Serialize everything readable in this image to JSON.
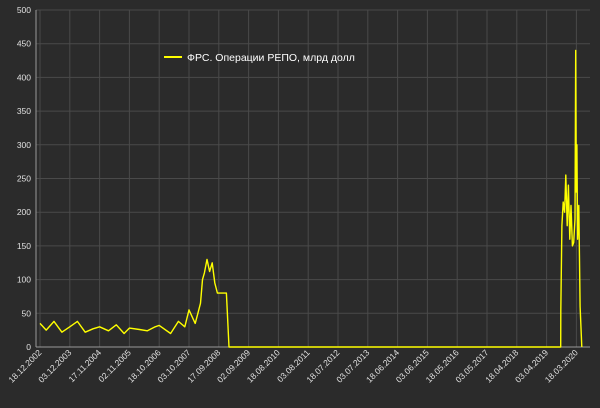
{
  "chart_data": {
    "type": "line",
    "background": "#2b2b2b",
    "grid": true,
    "grid_color": "#4a4a4a",
    "line_color": "#ffff00",
    "legend_position": "top-left",
    "ylim": [
      0,
      500
    ],
    "y_ticks": [
      "0",
      "50",
      "100",
      "150",
      "200",
      "250",
      "300",
      "350",
      "400",
      "450",
      "500"
    ],
    "x_tick_labels": [
      "18.12.2002",
      "03.12.2003",
      "17.11.2004",
      "02.11.2005",
      "18.10.2006",
      "03.10.2007",
      "17.09.2008",
      "02.09.2009",
      "18.08.2010",
      "03.08.2011",
      "18.07.2012",
      "03.07.2013",
      "18.06.2014",
      "03.06.2015",
      "18.05.2016",
      "03.05.2017",
      "18.04.2018",
      "03.04.2019",
      "18.03.2020"
    ],
    "series": [
      {
        "name": "ФРС. Операции РЕПО, млрд долл",
        "x": [
          "2002-12-18",
          "2003-03-01",
          "2003-06-01",
          "2003-09-01",
          "2003-12-03",
          "2004-03-01",
          "2004-06-01",
          "2004-09-01",
          "2004-11-17",
          "2005-03-01",
          "2005-06-01",
          "2005-09-01",
          "2005-11-02",
          "2006-03-01",
          "2006-06-01",
          "2006-09-01",
          "2006-10-18",
          "2007-03-01",
          "2007-06-01",
          "2007-08-15",
          "2007-10-03",
          "2007-12-15",
          "2008-01-15",
          "2008-02-15",
          "2008-03-10",
          "2008-04-01",
          "2008-05-01",
          "2008-06-01",
          "2008-07-01",
          "2008-08-01",
          "2008-09-01",
          "2008-09-17",
          "2008-10-15",
          "2008-11-15",
          "2008-12-15",
          "2009-01-15",
          "2009-02-01",
          "2009-09-02",
          "2010-08-18",
          "2011-08-03",
          "2012-07-18",
          "2013-07-03",
          "2014-06-18",
          "2015-06-03",
          "2016-05-18",
          "2017-05-03",
          "2018-04-18",
          "2019-04-03",
          "2019-09-16",
          "2019-09-17",
          "2019-09-30",
          "2019-10-15",
          "2019-10-31",
          "2019-11-15",
          "2019-12-01",
          "2019-12-15",
          "2019-12-31",
          "2020-01-15",
          "2020-01-31",
          "2020-02-15",
          "2020-03-02",
          "2020-03-10",
          "2020-03-17",
          "2020-03-24",
          "2020-04-01",
          "2020-04-15",
          "2020-05-01",
          "2020-05-20"
        ],
        "values": [
          35,
          25,
          38,
          22,
          30,
          38,
          22,
          27,
          30,
          24,
          33,
          20,
          28,
          26,
          24,
          30,
          32,
          20,
          38,
          30,
          55,
          35,
          50,
          65,
          100,
          110,
          130,
          112,
          125,
          95,
          80,
          80,
          80,
          80,
          80,
          0,
          0,
          0,
          0,
          0,
          0,
          0,
          0,
          0,
          0,
          0,
          0,
          0,
          0,
          53,
          180,
          215,
          200,
          255,
          180,
          240,
          160,
          210,
          150,
          155,
          190,
          440,
          230,
          300,
          160,
          210,
          60,
          0
        ]
      }
    ]
  }
}
